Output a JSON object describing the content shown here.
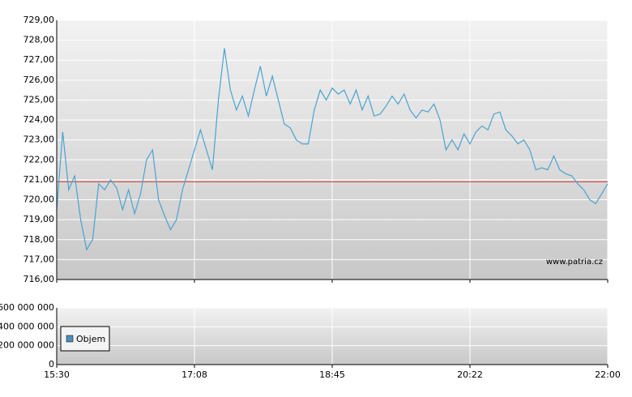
{
  "chart_data": [
    {
      "type": "line",
      "xticks": [
        "15:30",
        "17:08",
        "18:45",
        "20:22",
        "22:00"
      ],
      "ylim": [
        716,
        729
      ],
      "yticks": [
        {
          "value": 716,
          "label": "716,00"
        },
        {
          "value": 717,
          "label": "717,00"
        },
        {
          "value": 718,
          "label": "718,00"
        },
        {
          "value": 719,
          "label": "719,00"
        },
        {
          "value": 720,
          "label": "720,00"
        },
        {
          "value": 721,
          "label": "721,00"
        },
        {
          "value": 722,
          "label": "722,00"
        },
        {
          "value": 723,
          "label": "723,00"
        },
        {
          "value": 724,
          "label": "724,00"
        },
        {
          "value": 725,
          "label": "725,00"
        },
        {
          "value": 726,
          "label": "726,00"
        },
        {
          "value": 727,
          "label": "727,00"
        },
        {
          "value": 728,
          "label": "728,00"
        },
        {
          "value": 729,
          "label": "729,00"
        }
      ],
      "grid": true,
      "reference_line": {
        "value": 720.9,
        "color": "#cc3333"
      },
      "annotation": "www.patria.cz",
      "series": [
        {
          "color": "#4aa3d0",
          "values": [
            719.5,
            723.4,
            720.5,
            721.2,
            719.0,
            717.5,
            718.0,
            720.8,
            720.5,
            721.0,
            720.6,
            719.5,
            720.5,
            719.3,
            720.3,
            722.0,
            722.5,
            720.0,
            719.2,
            718.5,
            719.0,
            720.5,
            721.5,
            722.5,
            723.5,
            722.5,
            721.5,
            725.0,
            727.6,
            725.5,
            724.5,
            725.2,
            724.2,
            725.5,
            726.7,
            725.2,
            726.2,
            725.0,
            723.8,
            723.6,
            723.0,
            722.8,
            722.8,
            724.5,
            725.5,
            725.0,
            725.6,
            725.3,
            725.5,
            724.8,
            725.5,
            724.5,
            725.2,
            724.2,
            724.3,
            724.7,
            725.2,
            724.8,
            725.3,
            724.5,
            724.1,
            724.5,
            724.4,
            724.8,
            724.0,
            722.5,
            723.0,
            722.5,
            723.3,
            722.8,
            723.4,
            723.7,
            723.5,
            724.3,
            724.4,
            723.5,
            723.2,
            722.8,
            723.0,
            722.5,
            721.5,
            721.6,
            721.5,
            722.2,
            721.5,
            721.3,
            721.2,
            720.8,
            720.5,
            720.0,
            719.8,
            720.3,
            720.8
          ]
        }
      ]
    },
    {
      "type": "bar",
      "xticks": [
        "15:30",
        "17:08",
        "18:45",
        "20:22",
        "22:00"
      ],
      "ylim": [
        0,
        600000000
      ],
      "yticks": [
        0,
        {
          "value": 200000000,
          "label": "200 000 000"
        },
        {
          "value": 400000000,
          "label": "400 000 000"
        },
        {
          "value": 600000000,
          "label": "600 000 000"
        }
      ],
      "grid": true,
      "series": [
        {
          "name": "Objem",
          "color": "#4a90c0",
          "values": []
        }
      ]
    }
  ]
}
